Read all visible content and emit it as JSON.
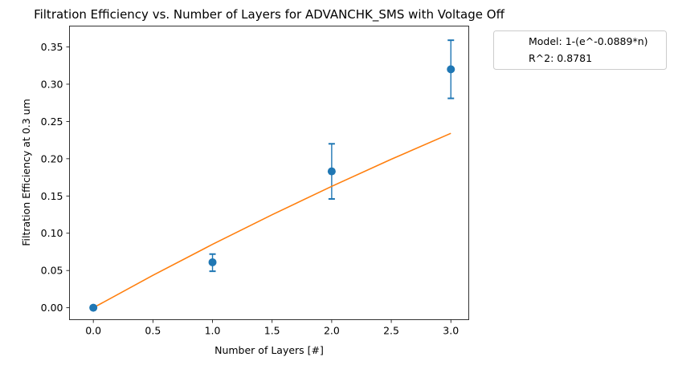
{
  "chart_data": {
    "type": "scatter",
    "title": "Filtration Efficiency vs. Number of Layers for ADVANCHK_SMS with Voltage Off",
    "xlabel": "Number of Layers [#]",
    "ylabel": "Filtration Efficiency at 0.3 um",
    "xlim": [
      -0.2,
      3.15
    ],
    "ylim": [
      -0.016,
      0.378
    ],
    "xticks": [
      0.0,
      0.5,
      1.0,
      1.5,
      2.0,
      2.5,
      3.0
    ],
    "xtick_labels": [
      "0.0",
      "0.5",
      "1.0",
      "1.5",
      "2.0",
      "2.5",
      "3.0"
    ],
    "yticks": [
      0.0,
      0.05,
      0.1,
      0.15,
      0.2,
      0.25,
      0.3,
      0.35
    ],
    "ytick_labels": [
      "0.00",
      "0.05",
      "0.10",
      "0.15",
      "0.20",
      "0.25",
      "0.30",
      "0.35"
    ],
    "grid": false,
    "legend_placement": "outside-top-right",
    "legend": [
      "Model: 1-(e^-0.0889*n)",
      "R^2: 0.8781"
    ],
    "series": [
      {
        "kind": "points-with-error",
        "color": "#1f77b4",
        "x": [
          0,
          1,
          2,
          3
        ],
        "y": [
          0.0,
          0.061,
          0.183,
          0.32
        ],
        "yerr_low": [
          0.0,
          0.049,
          0.146,
          0.281
        ],
        "yerr_high": [
          0.0,
          0.072,
          0.22,
          0.359
        ]
      },
      {
        "kind": "model-line",
        "color": "#ff7f0e",
        "x": [
          0,
          0.5,
          1,
          1.5,
          2,
          2.5,
          3
        ],
        "y": [
          0.0,
          0.0435,
          0.0851,
          0.1248,
          0.1629,
          0.1993,
          0.2341
        ]
      }
    ]
  }
}
